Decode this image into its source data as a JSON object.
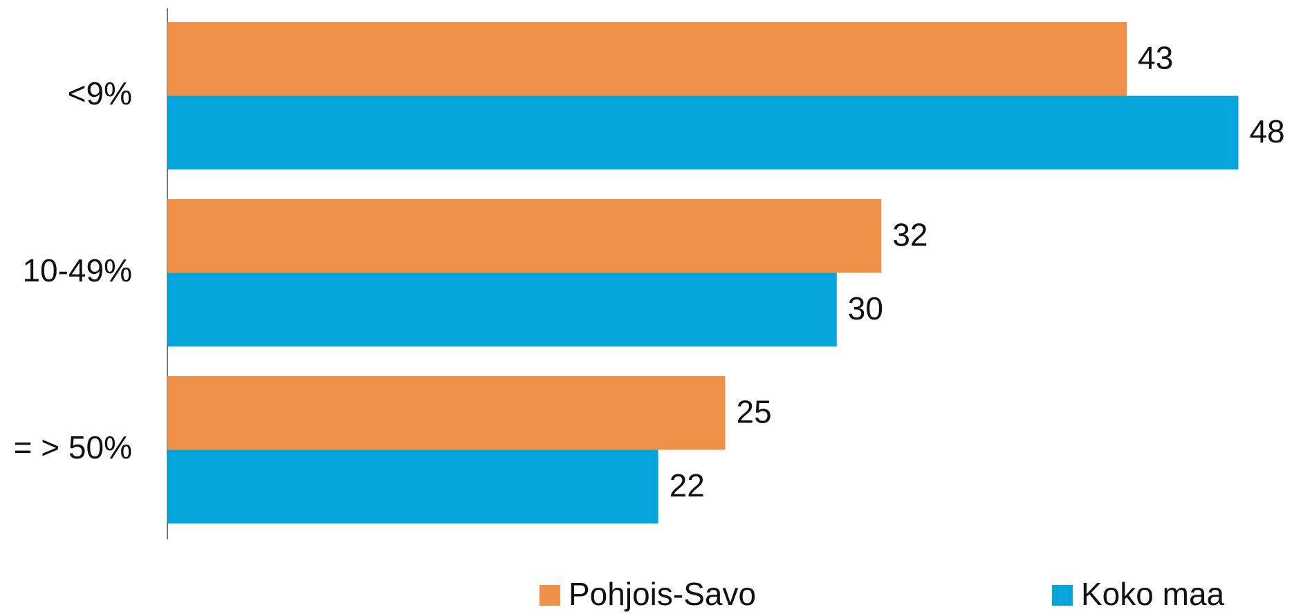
{
  "chart_data": {
    "type": "hbar",
    "categories": [
      "<9%",
      "10-49%",
      "= > 50%"
    ],
    "series": [
      {
        "name": "Pohjois-Savo",
        "color": "#f0914a",
        "values": [
          43,
          32,
          25
        ]
      },
      {
        "name": "Koko maa",
        "color": "#05a4db",
        "values": [
          48,
          30,
          22
        ]
      }
    ],
    "legend": "bottom"
  }
}
